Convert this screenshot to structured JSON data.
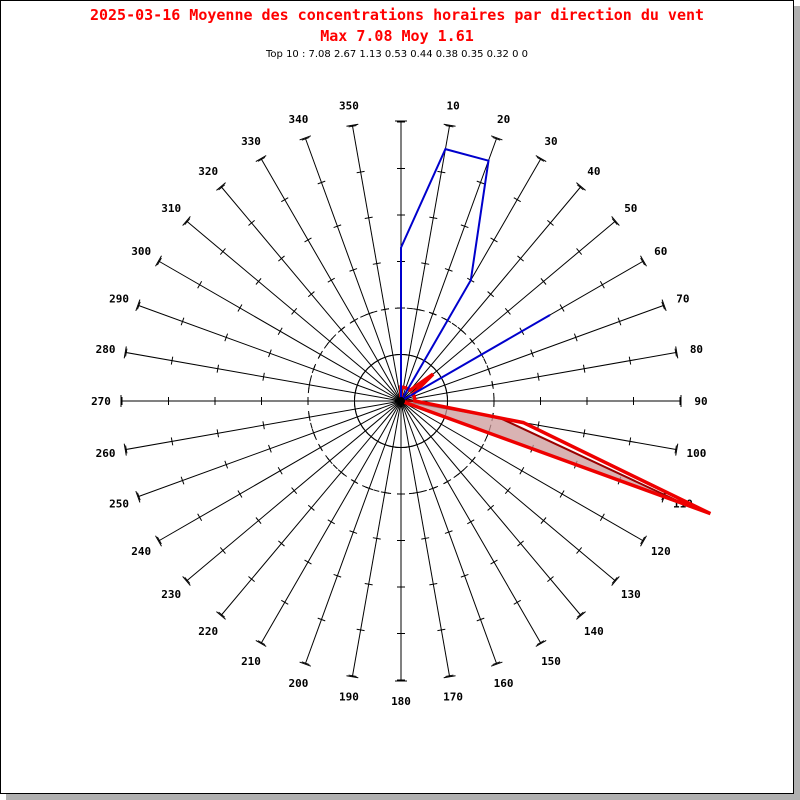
{
  "title": "2025-03-16 Moyenne des concentrations horaires par direction du vent",
  "subtitle": "Max 7.08 Moy 1.61",
  "top10_label": "Top 10 : 7.08 2.67 1.13 0.53 0.44 0.38 0.35 0.32 0 0",
  "colors": {
    "title": "#ff0000",
    "blue_series": "#0000cc",
    "red_series": "#ee0000",
    "red_fill": "#cc9999",
    "red_edge": "#990000"
  },
  "chart_data": {
    "type": "radar",
    "angle_labels": [
      "10",
      "20",
      "30",
      "40",
      "50",
      "60",
      "70",
      "80",
      "90",
      "100",
      "110",
      "120",
      "130",
      "140",
      "150",
      "160",
      "170",
      "180",
      "190",
      "200",
      "210",
      "220",
      "230",
      "240",
      "250",
      "260",
      "270",
      "280",
      "290",
      "300",
      "310",
      "320",
      "330",
      "340",
      "350"
    ],
    "directions": [
      0,
      10,
      20,
      30,
      40,
      50,
      60,
      70,
      80,
      90,
      100,
      110,
      120,
      130,
      140,
      150,
      160,
      170,
      180,
      190,
      200,
      210,
      220,
      230,
      240,
      250,
      260,
      270,
      280,
      290,
      300,
      310,
      320,
      330,
      340,
      350
    ],
    "r_max": 7.08,
    "series": [
      {
        "color": "blue",
        "values": [
          3.3,
          5.5,
          5.5,
          3.0,
          0,
          0,
          3.7,
          0,
          0,
          0,
          0,
          0,
          0,
          0,
          0,
          0,
          0,
          0,
          0,
          0,
          0,
          0,
          0,
          0,
          0,
          0,
          0,
          0,
          0,
          0,
          0,
          0,
          0,
          0,
          0,
          0
        ]
      },
      {
        "color": "red",
        "values": [
          0.3,
          0.3,
          0.3,
          0.3,
          0.3,
          0.9,
          0.3,
          0.3,
          0.3,
          0.3,
          2.67,
          7.08,
          0,
          0,
          0,
          0,
          0,
          0,
          0,
          0,
          0,
          0,
          0,
          0,
          0,
          0,
          0,
          0,
          0,
          0,
          0,
          0,
          0,
          0,
          0,
          0
        ]
      },
      {
        "color": "dark-red-filled",
        "values": [
          0.3,
          0,
          0,
          0,
          0,
          0,
          0,
          0,
          0,
          0.3,
          2.2,
          6.5,
          0,
          0,
          0,
          0,
          0,
          0,
          0,
          0,
          0,
          0,
          0,
          0,
          0,
          0,
          0,
          0,
          0,
          0,
          0,
          0,
          0,
          0,
          0,
          0
        ]
      }
    ],
    "rings": [
      1,
      2
    ]
  }
}
